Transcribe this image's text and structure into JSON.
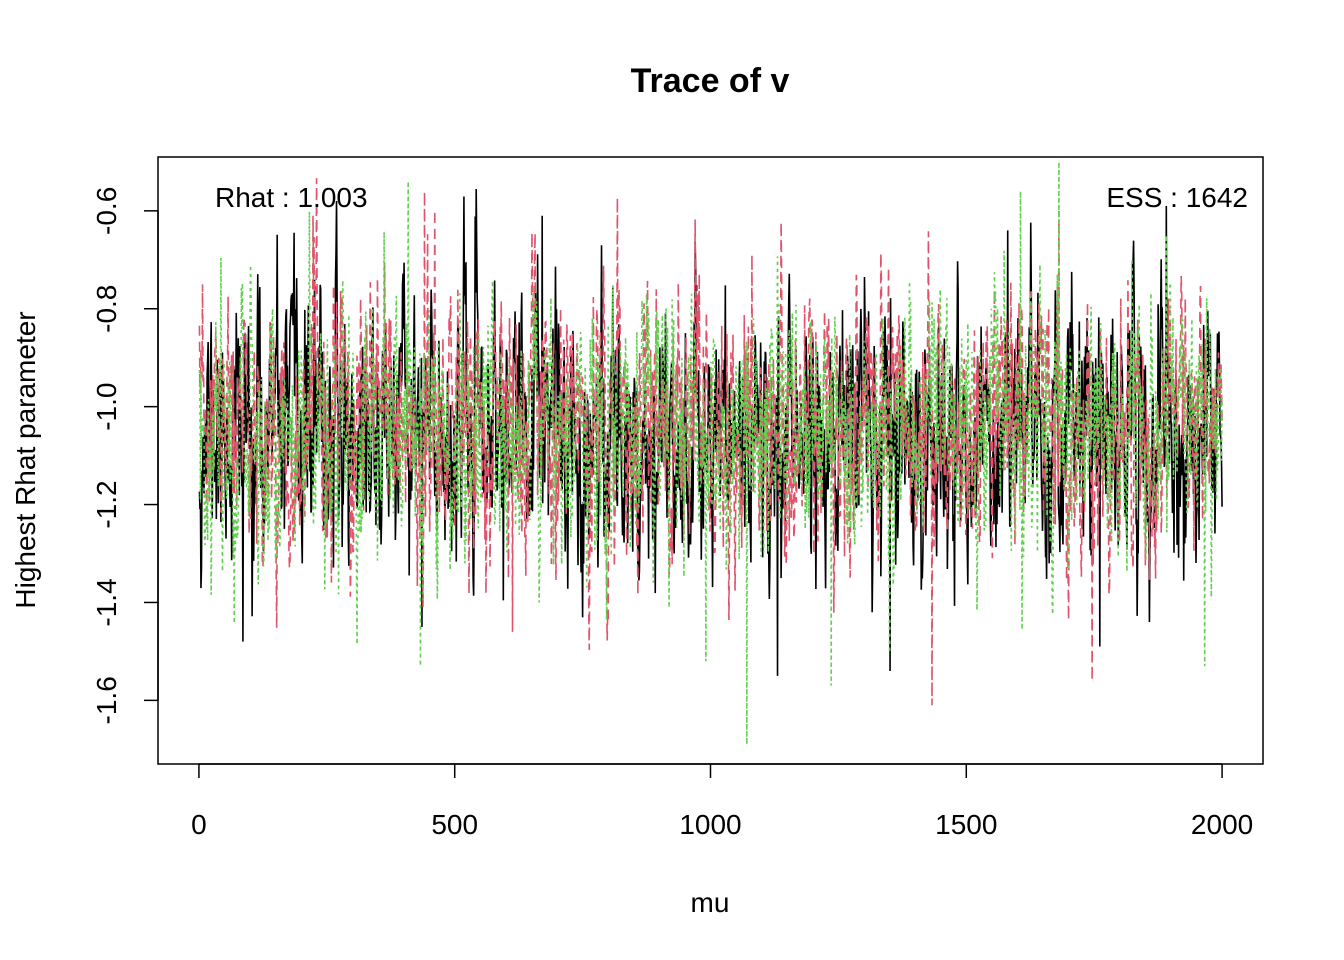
{
  "chart_data": {
    "type": "line",
    "title": "Trace of v",
    "xlabel": "mu",
    "ylabel": "Highest Rhat parameter",
    "xlim": [
      -80,
      2080
    ],
    "ylim": [
      -1.73,
      -0.49
    ],
    "xticks": [
      0,
      500,
      1000,
      1500,
      2000
    ],
    "yticks": [
      -1.6,
      -1.4,
      -1.2,
      -1.0,
      -0.8,
      -0.6
    ],
    "ytick_labels": [
      "-1.6",
      "-1.4",
      "-1.2",
      "-1.0",
      "-0.8",
      "-0.6"
    ],
    "annotations": {
      "left": "Rhat : 1.003",
      "right": "ESS : 1642"
    },
    "grid": false,
    "legend": "none",
    "n_iterations": 2000,
    "series": [
      {
        "chain": 1,
        "color": "#000000",
        "dash": "solid",
        "mean": -1.05,
        "sd": 0.13,
        "seed": 11,
        "peaks": [
          [
            268,
            -0.58
          ],
          [
            1890,
            -0.59
          ],
          [
            1580,
            -0.64
          ],
          [
            670,
            -0.61
          ]
        ],
        "troughs": [
          [
            1130,
            -1.55
          ],
          [
            1350,
            -1.54
          ],
          [
            85,
            -1.48
          ],
          [
            435,
            -1.45
          ],
          [
            1760,
            -1.49
          ]
        ]
      },
      {
        "chain": 2,
        "color": "#DF536B",
        "dash": "10,6",
        "mean": -1.05,
        "sd": 0.13,
        "seed": 23,
        "peaks": [
          [
            440,
            -0.56
          ],
          [
            1680,
            -0.6
          ],
          [
            222,
            -0.61
          ]
        ],
        "troughs": [
          [
            1432,
            -1.61
          ],
          [
            1745,
            -1.56
          ],
          [
            612,
            -1.46
          ]
        ]
      },
      {
        "chain": 3,
        "color": "#61D04F",
        "dash": "3,4",
        "mean": -1.05,
        "sd": 0.13,
        "seed": 37,
        "peaks": [
          [
            1680,
            -0.5
          ],
          [
            408,
            -0.54
          ],
          [
            1605,
            -0.56
          ],
          [
            1890,
            -0.65
          ]
        ],
        "troughs": [
          [
            1070,
            -1.69
          ],
          [
            1235,
            -1.57
          ],
          [
            432,
            -1.53
          ],
          [
            990,
            -1.52
          ],
          [
            1965,
            -1.53
          ]
        ]
      }
    ]
  }
}
